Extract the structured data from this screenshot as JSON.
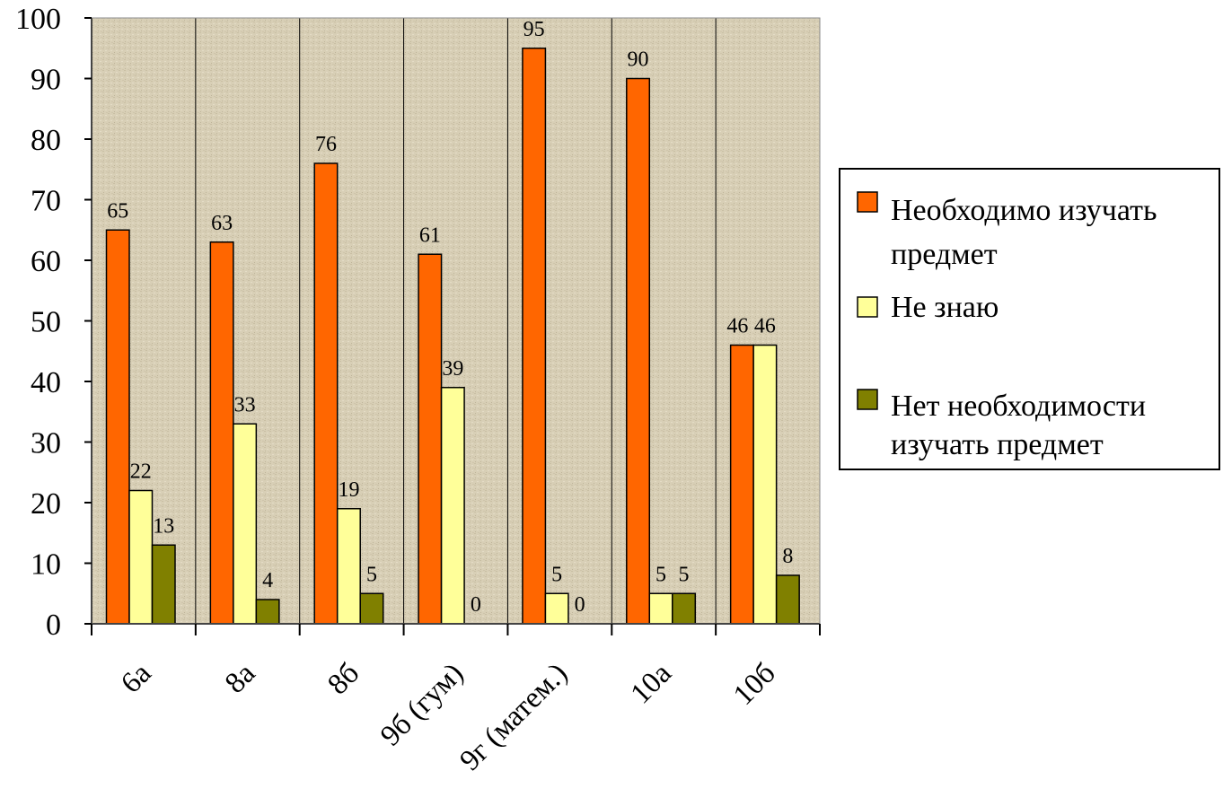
{
  "chart_data": {
    "type": "bar",
    "categories": [
      "6а",
      "8а",
      "8б",
      "9б (гум)",
      "9г (матем.)",
      "10а",
      "10б"
    ],
    "series": [
      {
        "name": "Необходимо изучать предмет",
        "values": [
          65,
          63,
          76,
          61,
          95,
          90,
          46
        ],
        "color": "#FF6600"
      },
      {
        "name": "Не знаю",
        "values": [
          22,
          33,
          19,
          39,
          5,
          5,
          46
        ],
        "color": "#FFFF99"
      },
      {
        "name": "Нет необходимости изучать предмет",
        "values": [
          13,
          4,
          5,
          0,
          0,
          5,
          8
        ],
        "color": "#808000"
      }
    ],
    "ylim": [
      0,
      100
    ],
    "yticks": [
      0,
      10,
      20,
      30,
      40,
      50,
      60,
      70,
      80,
      90,
      100
    ],
    "grid": "vertical",
    "legend_position": "right",
    "plot_background": "#D9D0B8"
  }
}
